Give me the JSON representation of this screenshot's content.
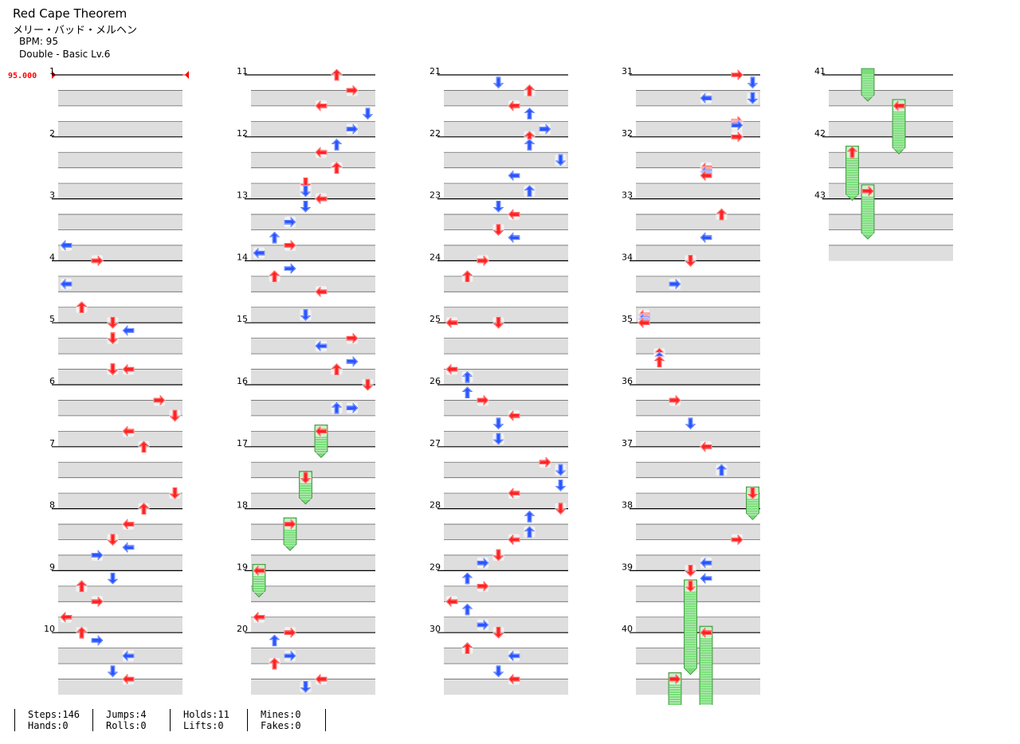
{
  "header": {
    "title": "Red Cape Theorem",
    "artist": "メリー・バッド・メルヘン",
    "bpm": "BPM: 95",
    "difficulty": "Double - Basic  Lv.6"
  },
  "bpm_marker": "95.000",
  "colors": {
    "red": "#ff2222",
    "blue": "#2a55ff",
    "hold": "#77dd77",
    "lane_shade": "#dedede",
    "bpm_marker": "#ff0000"
  },
  "measures": [
    {
      "n": "1",
      "notes": []
    },
    {
      "n": "2",
      "notes": []
    },
    {
      "n": "3",
      "notes": [
        {
          "b": 3,
          "c": 0,
          "t": "b"
        }
      ]
    },
    {
      "n": "4",
      "notes": [
        {
          "b": 0,
          "c": 2,
          "t": "r"
        },
        {
          "b": 1.5,
          "c": 0,
          "t": "b"
        }
      ]
    },
    {
      "n": "5",
      "notes": [
        {
          "b": -1,
          "c": 1,
          "t": "r"
        },
        {
          "b": 0,
          "c": 3,
          "t": "r"
        },
        {
          "b": 0.5,
          "c": 4,
          "t": "b"
        },
        {
          "b": 1,
          "c": 3,
          "t": "r"
        },
        {
          "b": 3,
          "c": 3,
          "t": "r"
        },
        {
          "b": 3,
          "c": 4,
          "t": "r"
        }
      ]
    },
    {
      "n": "6",
      "notes": [
        {
          "b": 1,
          "c": 6,
          "t": "r"
        },
        {
          "b": 2,
          "c": 7,
          "t": "r"
        },
        {
          "b": 3,
          "c": 4,
          "t": "r"
        }
      ]
    },
    {
      "n": "7",
      "notes": [
        {
          "b": 0,
          "c": 5,
          "t": "r"
        },
        {
          "b": 3,
          "c": 7,
          "t": "r"
        }
      ]
    },
    {
      "n": "8",
      "notes": [
        {
          "b": 0,
          "c": 5,
          "t": "r"
        },
        {
          "b": 1,
          "c": 4,
          "t": "r"
        },
        {
          "b": 2,
          "c": 3,
          "t": "r"
        },
        {
          "b": 2.5,
          "c": 4,
          "t": "b"
        },
        {
          "b": 3,
          "c": 2,
          "t": "b"
        }
      ]
    },
    {
      "n": "9",
      "notes": [
        {
          "b": 0.5,
          "c": 3,
          "t": "b"
        },
        {
          "b": 1,
          "c": 1,
          "t": "r"
        },
        {
          "b": 2,
          "c": 2,
          "t": "r"
        },
        {
          "b": 3,
          "c": 0,
          "t": "r"
        }
      ]
    },
    {
      "n": "10",
      "notes": [
        {
          "b": 0,
          "c": 1,
          "t": "r"
        },
        {
          "b": 0.5,
          "c": 2,
          "t": "b"
        },
        {
          "b": 1.5,
          "c": 4,
          "t": "b"
        },
        {
          "b": 2.5,
          "c": 3,
          "t": "b"
        },
        {
          "b": 3,
          "c": 4,
          "t": "r"
        }
      ]
    },
    {
      "n": "11",
      "notes": [
        {
          "b": 0,
          "c": 5,
          "t": "r"
        },
        {
          "b": 1,
          "c": 6,
          "t": "r"
        },
        {
          "b": 2,
          "c": 4,
          "t": "r"
        },
        {
          "b": 2.5,
          "c": 7,
          "t": "b"
        },
        {
          "b": 3.5,
          "c": 6,
          "t": "b"
        }
      ]
    },
    {
      "n": "12",
      "notes": [
        {
          "b": 0.5,
          "c": 5,
          "t": "b"
        },
        {
          "b": 1,
          "c": 4,
          "t": "r"
        },
        {
          "b": 2,
          "c": 5,
          "t": "r"
        },
        {
          "b": 3,
          "c": 3,
          "t": "r"
        },
        {
          "b": 3.5,
          "c": 3,
          "t": "b"
        }
      ]
    },
    {
      "n": "13",
      "notes": [
        {
          "b": 0,
          "c": 4,
          "t": "r"
        },
        {
          "b": 0.5,
          "c": 3,
          "t": "b"
        },
        {
          "b": 1.5,
          "c": 2,
          "t": "b"
        },
        {
          "b": 2.5,
          "c": 1,
          "t": "b"
        },
        {
          "b": 3,
          "c": 2,
          "t": "r"
        },
        {
          "b": 3.5,
          "c": 0,
          "t": "b"
        }
      ]
    },
    {
      "n": "14",
      "notes": [
        {
          "b": 0.5,
          "c": 2,
          "t": "b"
        },
        {
          "b": 1,
          "c": 1,
          "t": "r"
        },
        {
          "b": 2,
          "c": 4,
          "t": "r"
        },
        {
          "b": 3.5,
          "c": 3,
          "t": "b"
        }
      ]
    },
    {
      "n": "15",
      "notes": [
        {
          "b": 1,
          "c": 6,
          "t": "r"
        },
        {
          "b": 1.5,
          "c": 4,
          "t": "b"
        },
        {
          "b": 2.5,
          "c": 6,
          "t": "b"
        },
        {
          "b": 3,
          "c": 5,
          "t": "r"
        }
      ]
    },
    {
      "n": "16",
      "notes": [
        {
          "b": 0,
          "c": 7,
          "t": "r"
        },
        {
          "b": 1.5,
          "c": 5,
          "t": "b"
        },
        {
          "b": 1.5,
          "c": 6,
          "t": "b"
        },
        {
          "b": 3,
          "c": 4,
          "t": "r",
          "hold": 0.8
        }
      ]
    },
    {
      "n": "17",
      "notes": [
        {
          "b": 2,
          "c": 3,
          "t": "r",
          "hold": 0.8
        }
      ]
    },
    {
      "n": "18",
      "notes": [
        {
          "b": 1,
          "c": 2,
          "t": "r",
          "hold": 0.8
        }
      ]
    },
    {
      "n": "19",
      "notes": [
        {
          "b": 0,
          "c": 0,
          "t": "r",
          "hold": 0.8
        },
        {
          "b": 3,
          "c": 0,
          "t": "r"
        }
      ]
    },
    {
      "n": "20",
      "notes": [
        {
          "b": 0,
          "c": 2,
          "t": "r"
        },
        {
          "b": 0.5,
          "c": 1,
          "t": "b"
        },
        {
          "b": 1.5,
          "c": 2,
          "t": "b"
        },
        {
          "b": 2,
          "c": 1,
          "t": "r"
        },
        {
          "b": 3,
          "c": 4,
          "t": "r"
        },
        {
          "b": 3.5,
          "c": 3,
          "t": "b"
        }
      ]
    },
    {
      "n": "21",
      "notes": [
        {
          "b": 0.5,
          "c": 3,
          "t": "b"
        },
        {
          "b": 1,
          "c": 5,
          "t": "r"
        },
        {
          "b": 2,
          "c": 4,
          "t": "r"
        },
        {
          "b": 2.5,
          "c": 5,
          "t": "b"
        },
        {
          "b": 3.5,
          "c": 6,
          "t": "b"
        }
      ]
    },
    {
      "n": "22",
      "notes": [
        {
          "b": 0,
          "c": 5,
          "t": "r"
        },
        {
          "b": 0.5,
          "c": 5,
          "t": "b"
        },
        {
          "b": 1.5,
          "c": 7,
          "t": "b"
        },
        {
          "b": 2.5,
          "c": 4,
          "t": "b"
        },
        {
          "b": 3.5,
          "c": 5,
          "t": "b"
        }
      ]
    },
    {
      "n": "23",
      "notes": [
        {
          "b": 0.5,
          "c": 3,
          "t": "b"
        },
        {
          "b": 1,
          "c": 4,
          "t": "r"
        },
        {
          "b": 2,
          "c": 3,
          "t": "r"
        },
        {
          "b": 2.5,
          "c": 4,
          "t": "b"
        }
      ]
    },
    {
      "n": "24",
      "notes": [
        {
          "b": 0,
          "c": 2,
          "t": "r"
        },
        {
          "b": 1,
          "c": 1,
          "t": "r"
        }
      ]
    },
    {
      "n": "25",
      "notes": [
        {
          "b": 0,
          "c": 0,
          "t": "r"
        },
        {
          "b": 0,
          "c": 3,
          "t": "r"
        },
        {
          "b": 3,
          "c": 0,
          "t": "r"
        },
        {
          "b": 3.5,
          "c": 1,
          "t": "b"
        }
      ]
    },
    {
      "n": "26",
      "notes": [
        {
          "b": 0.5,
          "c": 1,
          "t": "b"
        },
        {
          "b": 1,
          "c": 2,
          "t": "r"
        },
        {
          "b": 2,
          "c": 4,
          "t": "r"
        },
        {
          "b": 2.5,
          "c": 3,
          "t": "b"
        },
        {
          "b": 3.5,
          "c": 3,
          "t": "b"
        }
      ]
    },
    {
      "n": "27",
      "notes": [
        {
          "b": 1,
          "c": 6,
          "t": "r"
        },
        {
          "b": 1.5,
          "c": 7,
          "t": "b"
        },
        {
          "b": 2.5,
          "c": 7,
          "t": "b"
        },
        {
          "b": 3,
          "c": 4,
          "t": "r"
        }
      ]
    },
    {
      "n": "28",
      "notes": [
        {
          "b": 0,
          "c": 7,
          "t": "r"
        },
        {
          "b": 0.5,
          "c": 5,
          "t": "b"
        },
        {
          "b": 1.5,
          "c": 5,
          "t": "b"
        },
        {
          "b": 2,
          "c": 4,
          "t": "r"
        },
        {
          "b": 3,
          "c": 3,
          "t": "r"
        },
        {
          "b": 3.5,
          "c": 2,
          "t": "b"
        }
      ]
    },
    {
      "n": "29",
      "notes": [
        {
          "b": 0.5,
          "c": 1,
          "t": "b"
        },
        {
          "b": 1,
          "c": 2,
          "t": "r"
        },
        {
          "b": 2,
          "c": 0,
          "t": "r"
        },
        {
          "b": 2.5,
          "c": 1,
          "t": "b"
        },
        {
          "b": 3.5,
          "c": 2,
          "t": "b"
        }
      ]
    },
    {
      "n": "30",
      "notes": [
        {
          "b": 0,
          "c": 3,
          "t": "r"
        },
        {
          "b": 1,
          "c": 1,
          "t": "r"
        },
        {
          "b": 1.5,
          "c": 4,
          "t": "b"
        },
        {
          "b": 2.5,
          "c": 3,
          "t": "b"
        },
        {
          "b": 3,
          "c": 4,
          "t": "r"
        }
      ]
    },
    {
      "n": "31",
      "notes": [
        {
          "b": 0,
          "c": 6,
          "t": "r"
        },
        {
          "b": 0.5,
          "c": 7,
          "t": "b"
        },
        {
          "b": 1.5,
          "c": 4,
          "t": "b"
        },
        {
          "b": 1.5,
          "c": 7,
          "t": "b"
        },
        {
          "b": 3,
          "c": 6,
          "t": "r"
        },
        {
          "b": 3.25,
          "c": 6,
          "t": "b"
        }
      ]
    },
    {
      "n": "32",
      "notes": [
        {
          "b": 0,
          "c": 6,
          "t": "r"
        },
        {
          "b": 2,
          "c": 4,
          "t": "r"
        },
        {
          "b": 2.25,
          "c": 4,
          "t": "b"
        },
        {
          "b": 2.5,
          "c": 4,
          "t": "r"
        }
      ]
    },
    {
      "n": "33",
      "notes": [
        {
          "b": 1,
          "c": 5,
          "t": "r"
        },
        {
          "b": 2.5,
          "c": 4,
          "t": "b"
        }
      ]
    },
    {
      "n": "34",
      "notes": [
        {
          "b": 0,
          "c": 3,
          "t": "r"
        },
        {
          "b": 1.5,
          "c": 2,
          "t": "b"
        },
        {
          "b": 3.5,
          "c": 0,
          "t": "r"
        },
        {
          "b": 3.75,
          "c": 0,
          "t": "b"
        }
      ]
    },
    {
      "n": "35",
      "notes": [
        {
          "b": 0,
          "c": 0,
          "t": "r"
        },
        {
          "b": 2,
          "c": 1,
          "t": "r"
        },
        {
          "b": 2.25,
          "c": 1,
          "t": "b"
        },
        {
          "b": 2.5,
          "c": 1,
          "t": "r"
        }
      ]
    },
    {
      "n": "36",
      "notes": [
        {
          "b": 1,
          "c": 2,
          "t": "r"
        },
        {
          "b": 2.5,
          "c": 3,
          "t": "b"
        }
      ]
    },
    {
      "n": "37",
      "notes": [
        {
          "b": 0,
          "c": 4,
          "t": "r"
        },
        {
          "b": 1.5,
          "c": 5,
          "t": "b"
        },
        {
          "b": 3,
          "c": 7,
          "t": "r",
          "hold": 0.8
        }
      ]
    },
    {
      "n": "38",
      "notes": [
        {
          "b": 2,
          "c": 6,
          "t": "r"
        },
        {
          "b": 3.5,
          "c": 4,
          "t": "b"
        }
      ]
    },
    {
      "n": "39",
      "notes": [
        {
          "b": 0,
          "c": 3,
          "t": "r"
        },
        {
          "b": 0.5,
          "c": 4,
          "t": "b"
        },
        {
          "b": 1,
          "c": 3,
          "t": "r",
          "hold": 2.8
        }
      ]
    },
    {
      "n": "40",
      "notes": [
        {
          "b": 0,
          "c": 4,
          "t": "r",
          "hold": 2.8
        },
        {
          "b": 3,
          "c": 2,
          "t": "r",
          "hold": 1.0
        }
      ]
    },
    {
      "n": "41",
      "notes": [
        {
          "b": 0,
          "c": 2,
          "t": "g",
          "hold": 0.8
        },
        {
          "b": 2,
          "c": 4,
          "t": "r",
          "hold": 1.5
        }
      ]
    },
    {
      "n": "42",
      "notes": [
        {
          "b": 1,
          "c": 1,
          "t": "r",
          "hold": 1.5
        },
        {
          "b": 3.5,
          "c": 2,
          "t": "r",
          "hold": 1.5
        }
      ]
    },
    {
      "n": "43",
      "notes": []
    }
  ],
  "stats": [
    {
      "a": "Steps:146",
      "b": "Hands:0"
    },
    {
      "a": "Jumps:4",
      "b": "Rolls:0"
    },
    {
      "a": "Holds:11",
      "b": "Lifts:0"
    },
    {
      "a": "Mines:0",
      "b": "Fakes:0"
    }
  ]
}
